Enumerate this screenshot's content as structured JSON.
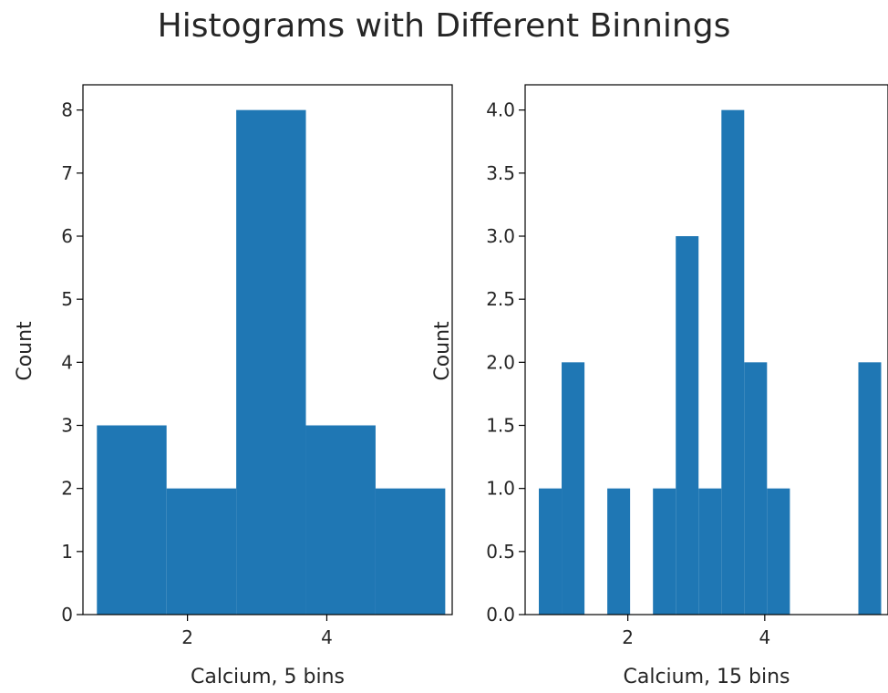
{
  "figure": {
    "title": "Histograms with Different Binnings"
  },
  "colors": {
    "bar": "#1f77b4",
    "axis": "#000000",
    "text": "#262626"
  },
  "chart_data": [
    {
      "type": "bar",
      "histogram": true,
      "bin_edges": [
        0.7,
        1.7,
        2.7,
        3.7,
        4.7,
        5.7
      ],
      "values": [
        3,
        2,
        8,
        3,
        2
      ],
      "xlabel": "Calcium, 5 bins",
      "ylabel": "Count",
      "xlim": [
        0.5,
        5.8
      ],
      "ylim": [
        0,
        8.4
      ],
      "xticks": [
        2,
        4
      ],
      "xtick_labels": [
        "2",
        "4"
      ],
      "yticks": [
        0,
        1,
        2,
        3,
        4,
        5,
        6,
        7,
        8
      ],
      "ytick_labels": [
        "0",
        "1",
        "2",
        "3",
        "4",
        "5",
        "6",
        "7",
        "8"
      ],
      "grid": false
    },
    {
      "type": "bar",
      "histogram": true,
      "bin_edges": [
        0.7,
        1.033,
        1.367,
        1.7,
        2.033,
        2.367,
        2.7,
        3.033,
        3.367,
        3.7,
        4.033,
        4.367,
        4.7,
        5.033,
        5.367,
        5.7
      ],
      "values": [
        1,
        2,
        0,
        1,
        0,
        1,
        3,
        1,
        4,
        2,
        1,
        0,
        0,
        0,
        2
      ],
      "xlabel": "Calcium, 15 bins",
      "ylabel": "Count",
      "xlim": [
        0.5,
        5.8
      ],
      "ylim": [
        0,
        4.2
      ],
      "xticks": [
        2,
        4
      ],
      "xtick_labels": [
        "2",
        "4"
      ],
      "yticks": [
        0,
        0.5,
        1,
        1.5,
        2,
        2.5,
        3,
        3.5,
        4
      ],
      "ytick_labels": [
        "0.0",
        "0.5",
        "1.0",
        "1.5",
        "2.0",
        "2.5",
        "3.0",
        "3.5",
        "4.0"
      ],
      "grid": false
    }
  ]
}
